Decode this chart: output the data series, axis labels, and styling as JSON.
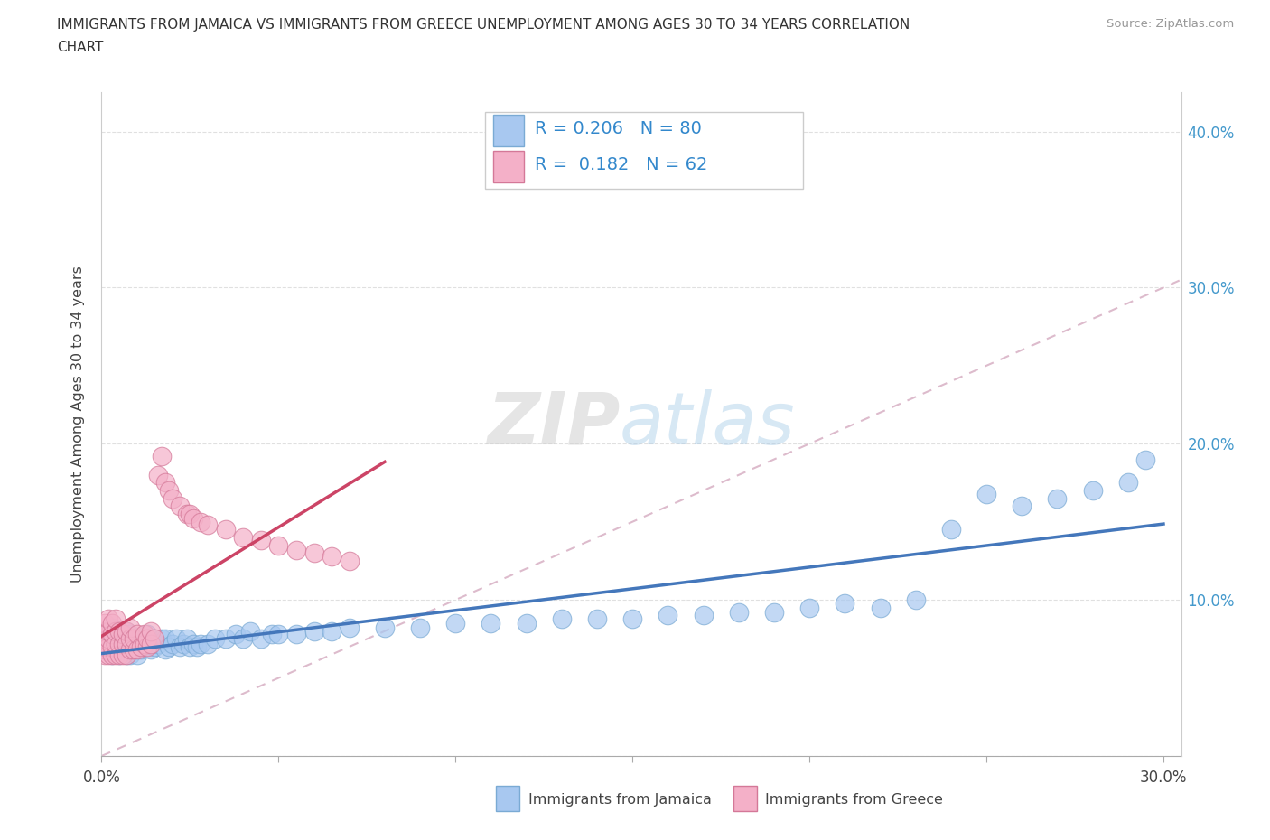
{
  "title_line1": "IMMIGRANTS FROM JAMAICA VS IMMIGRANTS FROM GREECE UNEMPLOYMENT AMONG AGES 30 TO 34 YEARS CORRELATION",
  "title_line2": "CHART",
  "source": "Source: ZipAtlas.com",
  "ylabel": "Unemployment Among Ages 30 to 34 years",
  "color_jamaica": "#a8c8f0",
  "color_jamaica_edge": "#7aaad4",
  "color_greece": "#f4b0c8",
  "color_greece_edge": "#d47898",
  "trendline_jamaica": "#4477bb",
  "trendline_greece": "#cc4466",
  "trendline_diag": "#ddbbcc",
  "r_jamaica": 0.206,
  "n_jamaica": 80,
  "r_greece": 0.182,
  "n_greece": 62,
  "xlim": [
    0.0,
    0.305
  ],
  "ylim": [
    0.0,
    0.425
  ],
  "xtick_positions": [
    0.0,
    0.05,
    0.1,
    0.15,
    0.2,
    0.25,
    0.3
  ],
  "ytick_positions": [
    0.0,
    0.1,
    0.2,
    0.3,
    0.4
  ],
  "label_jamaica": "Immigrants from Jamaica",
  "label_greece": "Immigrants from Greece",
  "jamaica_x": [
    0.002,
    0.002,
    0.002,
    0.003,
    0.003,
    0.003,
    0.003,
    0.004,
    0.004,
    0.005,
    0.005,
    0.005,
    0.006,
    0.006,
    0.007,
    0.007,
    0.007,
    0.008,
    0.008,
    0.008,
    0.009,
    0.009,
    0.01,
    0.01,
    0.011,
    0.012,
    0.013,
    0.013,
    0.014,
    0.015,
    0.016,
    0.017,
    0.018,
    0.018,
    0.019,
    0.02,
    0.021,
    0.022,
    0.023,
    0.024,
    0.025,
    0.026,
    0.027,
    0.028,
    0.03,
    0.032,
    0.035,
    0.038,
    0.04,
    0.042,
    0.045,
    0.048,
    0.05,
    0.055,
    0.06,
    0.065,
    0.07,
    0.08,
    0.09,
    0.1,
    0.11,
    0.12,
    0.13,
    0.14,
    0.15,
    0.16,
    0.17,
    0.18,
    0.19,
    0.2,
    0.21,
    0.22,
    0.23,
    0.24,
    0.25,
    0.26,
    0.27,
    0.28,
    0.29,
    0.295
  ],
  "jamaica_y": [
    0.068,
    0.072,
    0.078,
    0.065,
    0.07,
    0.075,
    0.082,
    0.068,
    0.075,
    0.065,
    0.07,
    0.078,
    0.068,
    0.075,
    0.065,
    0.072,
    0.08,
    0.065,
    0.072,
    0.078,
    0.068,
    0.075,
    0.065,
    0.072,
    0.068,
    0.07,
    0.072,
    0.078,
    0.068,
    0.07,
    0.072,
    0.075,
    0.068,
    0.075,
    0.07,
    0.072,
    0.075,
    0.07,
    0.072,
    0.075,
    0.07,
    0.072,
    0.07,
    0.072,
    0.072,
    0.075,
    0.075,
    0.078,
    0.075,
    0.08,
    0.075,
    0.078,
    0.078,
    0.078,
    0.08,
    0.08,
    0.082,
    0.082,
    0.082,
    0.085,
    0.085,
    0.085,
    0.088,
    0.088,
    0.088,
    0.09,
    0.09,
    0.092,
    0.092,
    0.095,
    0.098,
    0.095,
    0.1,
    0.145,
    0.168,
    0.16,
    0.165,
    0.17,
    0.175,
    0.19
  ],
  "greece_x": [
    0.001,
    0.001,
    0.001,
    0.001,
    0.001,
    0.001,
    0.002,
    0.002,
    0.002,
    0.002,
    0.002,
    0.003,
    0.003,
    0.003,
    0.003,
    0.004,
    0.004,
    0.004,
    0.004,
    0.005,
    0.005,
    0.005,
    0.006,
    0.006,
    0.006,
    0.007,
    0.007,
    0.007,
    0.008,
    0.008,
    0.008,
    0.009,
    0.009,
    0.01,
    0.01,
    0.011,
    0.012,
    0.012,
    0.013,
    0.013,
    0.014,
    0.014,
    0.015,
    0.016,
    0.017,
    0.018,
    0.019,
    0.02,
    0.022,
    0.024,
    0.025,
    0.026,
    0.028,
    0.03,
    0.035,
    0.04,
    0.045,
    0.05,
    0.055,
    0.06,
    0.065,
    0.07
  ],
  "greece_y": [
    0.065,
    0.068,
    0.07,
    0.075,
    0.08,
    0.085,
    0.065,
    0.07,
    0.075,
    0.08,
    0.088,
    0.065,
    0.07,
    0.078,
    0.085,
    0.065,
    0.072,
    0.08,
    0.088,
    0.065,
    0.072,
    0.08,
    0.065,
    0.072,
    0.078,
    0.065,
    0.072,
    0.08,
    0.068,
    0.075,
    0.082,
    0.068,
    0.075,
    0.068,
    0.078,
    0.07,
    0.072,
    0.078,
    0.07,
    0.075,
    0.072,
    0.08,
    0.075,
    0.18,
    0.192,
    0.175,
    0.17,
    0.165,
    0.16,
    0.155,
    0.155,
    0.152,
    0.15,
    0.148,
    0.145,
    0.14,
    0.138,
    0.135,
    0.132,
    0.13,
    0.128,
    0.125
  ]
}
